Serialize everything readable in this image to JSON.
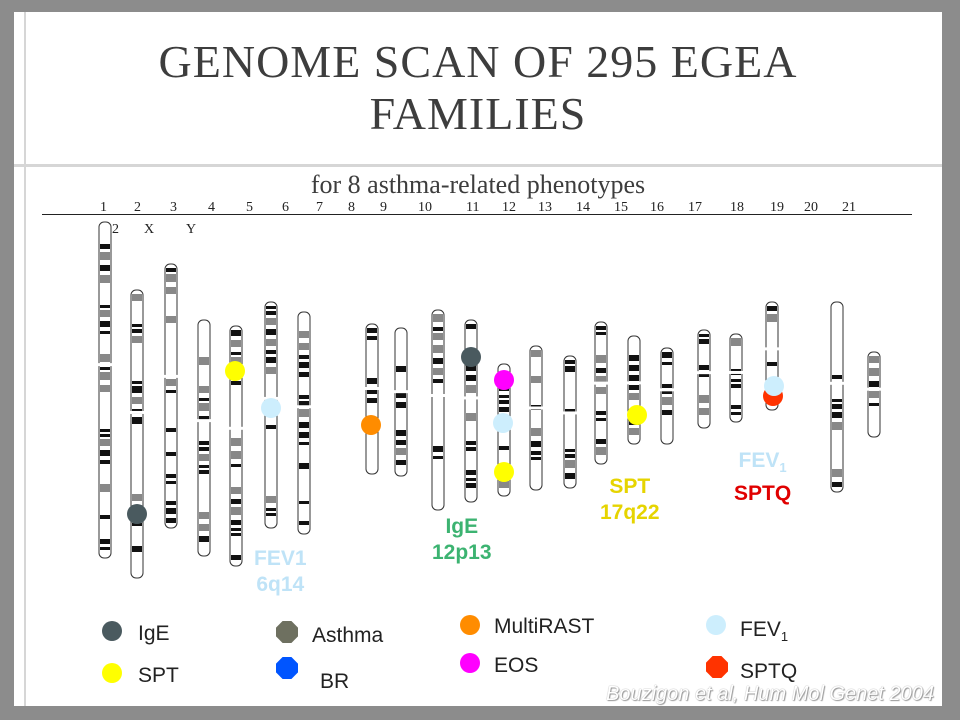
{
  "title_line1": "GENOME SCAN OF 295 EGEA",
  "title_line2": "FAMILIES",
  "subtitle": "for 8 asthma-related phenotypes",
  "chromosome_numbers_row1": [
    "1",
    "2",
    "3",
    "4",
    "5",
    "6",
    "7",
    "8",
    "9",
    "10",
    "11",
    "12",
    "13",
    "14",
    "15",
    "16",
    "17",
    "18",
    "19",
    "20",
    "21"
  ],
  "chromosome_numbers_row2": [
    "2",
    "X",
    "Y"
  ],
  "annotations": {
    "fev1_6q14": {
      "line1": "FEV1",
      "line2": "6q14",
      "color": "#bfe3f7"
    },
    "ige_12p13": {
      "line1": "IgE",
      "line2": "12p13",
      "color": "#3cb371"
    },
    "spt_17q22": {
      "line1": "SPT",
      "line2": "17q22",
      "color": "#e6d400"
    },
    "fev1_sptq": {
      "line1": "FEV",
      "line1_sub": "1",
      "line2": "SPTQ",
      "color_line1": "#bfe3f7",
      "color_line2": "#e00000"
    }
  },
  "legend": {
    "ige": {
      "label": "IgE",
      "color": "#4a5a5f"
    },
    "spt": {
      "label": "SPT",
      "color": "#ffff00"
    },
    "asthma": {
      "label": "Asthma",
      "color": "#6e7060"
    },
    "br": {
      "label": "BR",
      "color": "#0055ff"
    },
    "multirast": {
      "label": "MultiRAST",
      "color": "#ff8c00"
    },
    "eos": {
      "label": "EOS",
      "color": "#ff00ff"
    },
    "fev1": {
      "label": "FEV",
      "sub": "1",
      "color": "#cdeefd"
    },
    "sptq": {
      "label": "SPTQ",
      "color": "#ff3300"
    }
  },
  "citation": "Bouzigon et al, Hum Mol Genet 2004"
}
